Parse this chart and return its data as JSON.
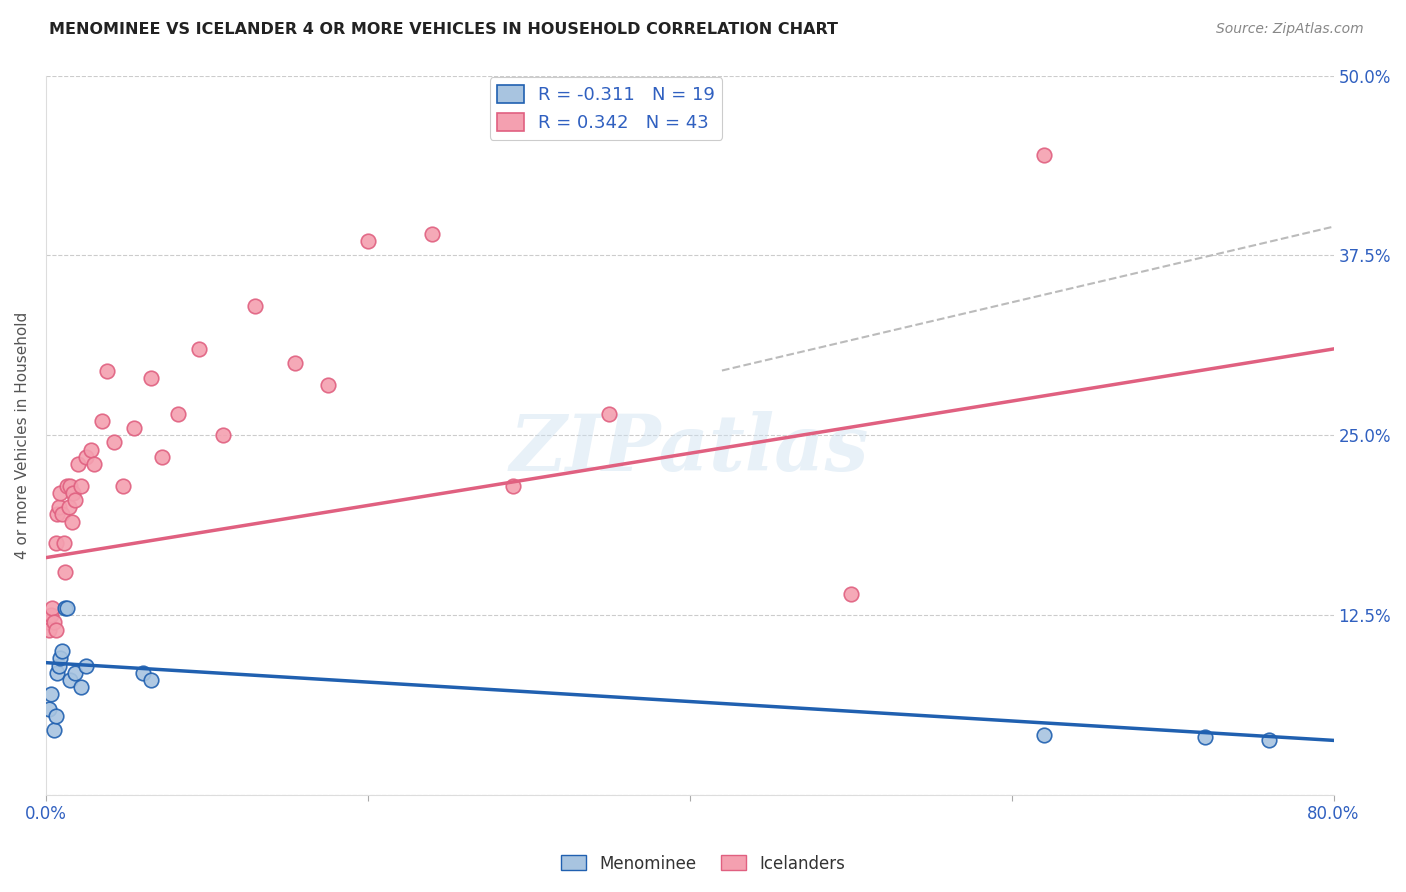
{
  "title": "MENOMINEE VS ICELANDER 4 OR MORE VEHICLES IN HOUSEHOLD CORRELATION CHART",
  "source": "Source: ZipAtlas.com",
  "ylabel": "4 or more Vehicles in Household",
  "xlabel": "",
  "xlim": [
    0.0,
    0.8
  ],
  "ylim": [
    0.0,
    0.5
  ],
  "xticks": [
    0.0,
    0.2,
    0.4,
    0.6,
    0.8
  ],
  "xticklabels": [
    "0.0%",
    "",
    "",
    "",
    "80.0%"
  ],
  "yticks": [
    0.0,
    0.125,
    0.25,
    0.375,
    0.5
  ],
  "yticklabels": [
    "",
    "12.5%",
    "25.0%",
    "37.5%",
    "50.0%"
  ],
  "legend_label1": "R = -0.311   N = 19",
  "legend_label2": "R = 0.342   N = 43",
  "menominee_color": "#a8c4e0",
  "icelander_color": "#f4a0b0",
  "menominee_line_color": "#2060b0",
  "icelander_line_color": "#e06080",
  "menominee_R": -0.311,
  "menominee_N": 19,
  "icelander_R": 0.342,
  "icelander_N": 43,
  "watermark": "ZIPatlas",
  "menominee_line_x0": 0.0,
  "menominee_line_y0": 0.092,
  "menominee_line_x1": 0.8,
  "menominee_line_y1": 0.038,
  "icelander_line_x0": 0.0,
  "icelander_line_y0": 0.165,
  "icelander_line_x1": 0.8,
  "icelander_line_y1": 0.31,
  "dash_line_x0": 0.42,
  "dash_line_y0": 0.295,
  "dash_line_x1": 0.8,
  "dash_line_y1": 0.395,
  "menominee_x": [
    0.002,
    0.003,
    0.005,
    0.006,
    0.007,
    0.008,
    0.009,
    0.01,
    0.012,
    0.013,
    0.015,
    0.018,
    0.022,
    0.025,
    0.06,
    0.065,
    0.62,
    0.72,
    0.76
  ],
  "menominee_y": [
    0.06,
    0.07,
    0.045,
    0.055,
    0.085,
    0.09,
    0.095,
    0.1,
    0.13,
    0.13,
    0.08,
    0.085,
    0.075,
    0.09,
    0.085,
    0.08,
    0.042,
    0.04,
    0.038
  ],
  "icelander_x": [
    0.001,
    0.002,
    0.003,
    0.004,
    0.005,
    0.006,
    0.006,
    0.007,
    0.008,
    0.009,
    0.01,
    0.011,
    0.012,
    0.013,
    0.014,
    0.015,
    0.016,
    0.017,
    0.018,
    0.02,
    0.022,
    0.025,
    0.028,
    0.03,
    0.035,
    0.038,
    0.042,
    0.048,
    0.055,
    0.065,
    0.072,
    0.082,
    0.095,
    0.11,
    0.13,
    0.155,
    0.175,
    0.2,
    0.24,
    0.29,
    0.35,
    0.5,
    0.62
  ],
  "icelander_y": [
    0.12,
    0.115,
    0.125,
    0.13,
    0.12,
    0.115,
    0.175,
    0.195,
    0.2,
    0.21,
    0.195,
    0.175,
    0.155,
    0.215,
    0.2,
    0.215,
    0.19,
    0.21,
    0.205,
    0.23,
    0.215,
    0.235,
    0.24,
    0.23,
    0.26,
    0.295,
    0.245,
    0.215,
    0.255,
    0.29,
    0.235,
    0.265,
    0.31,
    0.25,
    0.34,
    0.3,
    0.285,
    0.385,
    0.39,
    0.215,
    0.265,
    0.14,
    0.445
  ]
}
